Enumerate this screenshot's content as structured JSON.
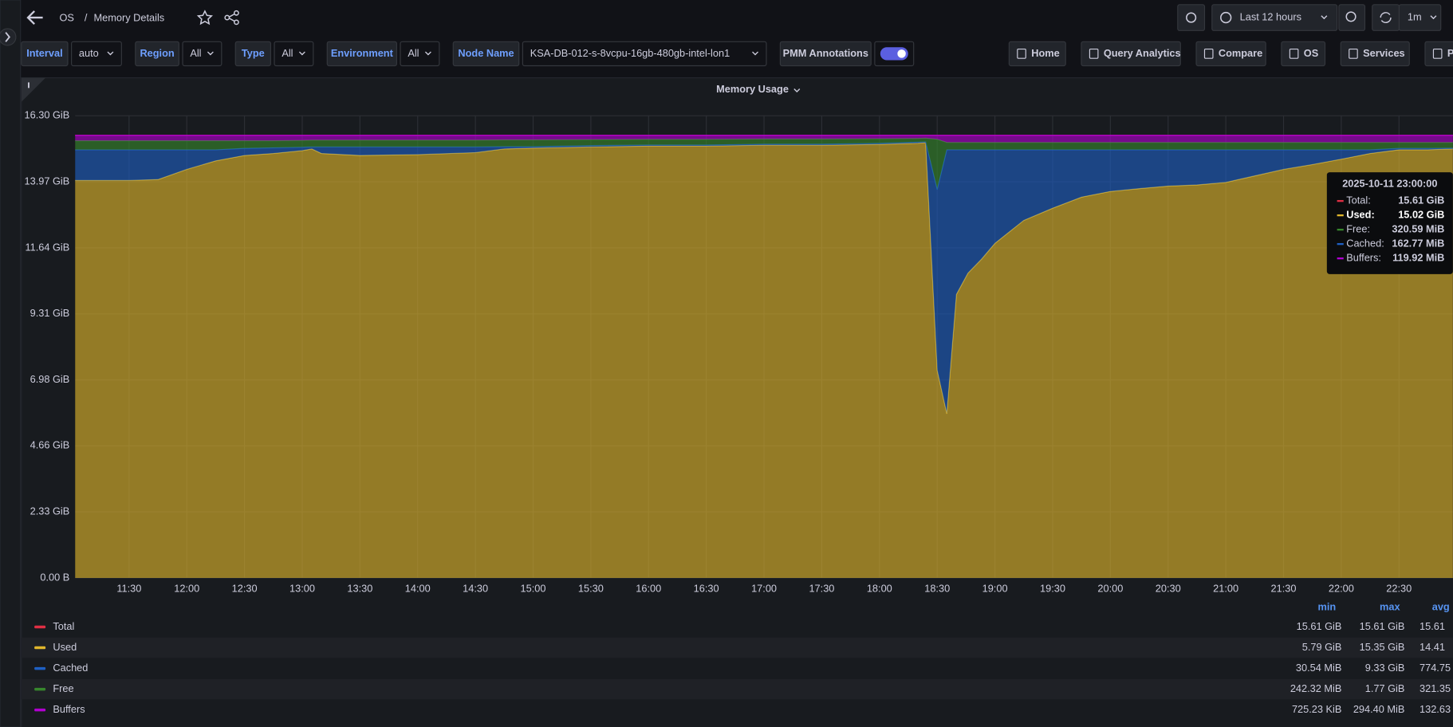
{
  "header": {
    "parent": "OS",
    "separator": "/",
    "title": "Memory Details",
    "time_range": "Last 12 hours",
    "refresh": "1m"
  },
  "variables": [
    {
      "label": "Interval",
      "value": "auto"
    },
    {
      "label": "Region",
      "value": "All"
    },
    {
      "label": "Type",
      "value": "All"
    },
    {
      "label": "Environment",
      "value": "All"
    },
    {
      "label": "Node Name",
      "value": "KSA-DB-012-s-8vcpu-16gb-480gb-intel-lon1"
    }
  ],
  "annotations_label": "PMM Annotations",
  "links": [
    "Home",
    "Query Analytics",
    "Compare",
    "OS",
    "Services",
    "P"
  ],
  "tooltip": {
    "time": "2025-10-11 23:00:00",
    "rows": [
      {
        "label": "Total:",
        "value": "15.61 GiB",
        "color": "#e02f44"
      },
      {
        "label": "Used:",
        "value": "15.02 GiB",
        "color": "#e0b62c",
        "highlight": true
      },
      {
        "label": "Free:",
        "value": "320.59 MiB",
        "color": "#37872d"
      },
      {
        "label": "Cached:",
        "value": "162.77 MiB",
        "color": "#1f60c4"
      },
      {
        "label": "Buffers:",
        "value": "119.92 MiB",
        "color": "#b000d0"
      }
    ]
  },
  "chart_data": {
    "type": "area",
    "title": "Memory Usage",
    "stacked": true,
    "fill_opacity": 0.62,
    "grid": true,
    "x": [
      "11:02",
      "11:30",
      "11:45",
      "12:00",
      "12:15",
      "12:30",
      "12:45",
      "13:00",
      "13:05",
      "13:10",
      "13:30",
      "14:00",
      "14:30",
      "14:45",
      "15:00",
      "15:30",
      "16:00",
      "16:30",
      "17:00",
      "17:30",
      "18:00",
      "18:20",
      "18:24",
      "18:30",
      "18:35",
      "18:40",
      "18:46",
      "18:53",
      "19:00",
      "19:15",
      "19:30",
      "19:45",
      "20:00",
      "20:15",
      "20:30",
      "20:45",
      "21:00",
      "21:15",
      "21:30",
      "21:45",
      "22:00",
      "22:15",
      "22:30",
      "22:45",
      "22:58"
    ],
    "xlim": [
      "11:02",
      "22:58"
    ],
    "xticks": [
      "11:30",
      "12:00",
      "12:30",
      "13:00",
      "13:30",
      "14:00",
      "14:30",
      "15:00",
      "15:30",
      "16:00",
      "16:30",
      "17:00",
      "17:30",
      "18:00",
      "18:30",
      "19:00",
      "19:30",
      "20:00",
      "20:30",
      "21:00",
      "21:30",
      "22:00",
      "22:30"
    ],
    "ylim": [
      0,
      16.3
    ],
    "yticks": [
      {
        "value": 0,
        "label": "0.00 B"
      },
      {
        "value": 2.33,
        "label": "2.33 GiB"
      },
      {
        "value": 4.66,
        "label": "4.66 GiB"
      },
      {
        "value": 6.98,
        "label": "6.98 GiB"
      },
      {
        "value": 9.31,
        "label": "9.31 GiB"
      },
      {
        "value": 11.64,
        "label": "11.64 GiB"
      },
      {
        "value": 13.97,
        "label": "13.97 GiB"
      },
      {
        "value": 16.3,
        "label": "16.30 GiB"
      }
    ],
    "series": [
      {
        "name": "Total",
        "color": "#e02f44",
        "stack": false,
        "values": [
          15.61,
          15.61,
          15.61,
          15.61,
          15.61,
          15.61,
          15.61,
          15.61,
          15.61,
          15.61,
          15.61,
          15.61,
          15.61,
          15.61,
          15.61,
          15.61,
          15.61,
          15.61,
          15.61,
          15.61,
          15.61,
          15.61,
          15.61,
          15.61,
          15.61,
          15.61,
          15.61,
          15.61,
          15.61,
          15.61,
          15.61,
          15.61,
          15.61,
          15.61,
          15.61,
          15.61,
          15.61,
          15.61,
          15.61,
          15.61,
          15.61,
          15.61,
          15.61,
          15.61,
          15.61
        ]
      },
      {
        "name": "Used",
        "color": "#e0b62c",
        "stack": true,
        "values": [
          14.02,
          14.02,
          14.05,
          14.41,
          14.71,
          14.9,
          14.97,
          15.07,
          15.13,
          14.97,
          14.9,
          14.93,
          15.0,
          15.13,
          15.16,
          15.2,
          15.23,
          15.23,
          15.26,
          15.26,
          15.29,
          15.33,
          15.35,
          7.32,
          5.79,
          10.0,
          10.75,
          11.24,
          11.8,
          12.61,
          13.04,
          13.43,
          13.63,
          13.73,
          13.82,
          13.86,
          13.95,
          14.18,
          14.41,
          14.58,
          14.77,
          14.97,
          15.1,
          15.1,
          15.13
        ]
      },
      {
        "name": "Cached",
        "color": "#1f60c4",
        "stack": true,
        "values": [
          1.08,
          1.08,
          1.05,
          0.69,
          0.39,
          0.25,
          0.2,
          0.12,
          0.07,
          0.23,
          0.3,
          0.27,
          0.2,
          0.08,
          0.05,
          0.05,
          0.04,
          0.04,
          0.04,
          0.04,
          0.04,
          0.04,
          0.03,
          6.38,
          9.31,
          5.1,
          4.35,
          3.86,
          3.3,
          2.49,
          2.06,
          1.67,
          1.47,
          1.37,
          1.28,
          1.24,
          1.15,
          0.92,
          0.69,
          0.52,
          0.33,
          0.13,
          0.05,
          0.05,
          0.03
        ]
      },
      {
        "name": "Free",
        "color": "#37872d",
        "stack": true,
        "values": [
          0.32,
          0.32,
          0.32,
          0.32,
          0.32,
          0.27,
          0.25,
          0.24,
          0.24,
          0.24,
          0.24,
          0.24,
          0.24,
          0.24,
          0.24,
          0.21,
          0.2,
          0.2,
          0.18,
          0.18,
          0.16,
          0.13,
          0.13,
          1.77,
          0.26,
          0.26,
          0.26,
          0.26,
          0.26,
          0.26,
          0.26,
          0.26,
          0.26,
          0.26,
          0.26,
          0.26,
          0.26,
          0.26,
          0.26,
          0.26,
          0.26,
          0.26,
          0.21,
          0.21,
          0.2
        ]
      },
      {
        "name": "Buffers",
        "color": "#b000d0",
        "stack": true,
        "values": [
          0.19,
          0.19,
          0.19,
          0.19,
          0.19,
          0.19,
          0.19,
          0.18,
          0.17,
          0.17,
          0.17,
          0.17,
          0.17,
          0.16,
          0.16,
          0.15,
          0.14,
          0.14,
          0.13,
          0.13,
          0.12,
          0.11,
          0.1,
          0.14,
          0.25,
          0.25,
          0.25,
          0.25,
          0.25,
          0.25,
          0.25,
          0.25,
          0.25,
          0.25,
          0.25,
          0.25,
          0.25,
          0.25,
          0.25,
          0.25,
          0.25,
          0.25,
          0.25,
          0.25,
          0.25
        ]
      }
    ],
    "legend": {
      "columns": [
        "min",
        "max",
        "avg"
      ],
      "rows": [
        [
          "15.61 GiB",
          "15.61 GiB",
          "15.61"
        ],
        [
          "5.79 GiB",
          "15.35 GiB",
          "14.41"
        ],
        [
          "30.54 MiB",
          "9.33 GiB",
          "774.75"
        ],
        [
          "242.32 MiB",
          "1.77 GiB",
          "321.35"
        ],
        [
          "725.23 KiB",
          "294.40 MiB",
          "132.63"
        ]
      ]
    }
  }
}
